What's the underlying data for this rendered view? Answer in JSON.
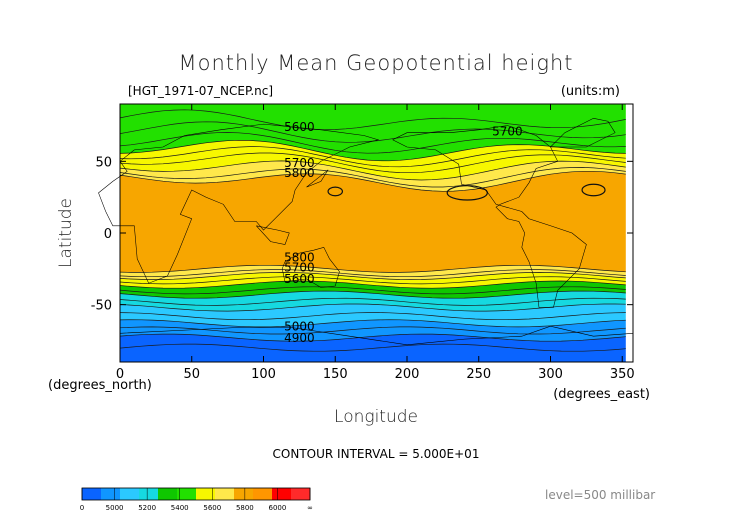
{
  "chart_data": {
    "type": "contour",
    "title": "Monthly Mean Geopotential height",
    "file_label": "[HGT_1971-07_NCEP.nc]",
    "units_label": "(units:m)",
    "xlabel": "Longitude",
    "ylabel": "Latitude",
    "x_unit_label": "(degrees_east)",
    "y_unit_label": "(degrees_north)",
    "xlim": [
      0,
      357.5
    ],
    "ylim": [
      -90,
      90
    ],
    "x_ticks": [
      0,
      50,
      100,
      150,
      200,
      250,
      300,
      350
    ],
    "y_ticks": [
      -50,
      0,
      50
    ],
    "contour_interval_text": "CONTOUR INTERVAL = 5.000E+01",
    "level_text": "level=500 millibar",
    "contour_labels": [
      {
        "text": "5600",
        "lon": 125,
        "lat": 71
      },
      {
        "text": "5700",
        "lon": 125,
        "lat": 46
      },
      {
        "text": "5800",
        "lon": 125,
        "lat": 39
      },
      {
        "text": "5700",
        "lon": 270,
        "lat": 68
      },
      {
        "text": "5800",
        "lon": 125,
        "lat": -20
      },
      {
        "text": "5700",
        "lon": 125,
        "lat": -27
      },
      {
        "text": "5600",
        "lon": 125,
        "lat": -35
      },
      {
        "text": "5000",
        "lon": 125,
        "lat": -68
      },
      {
        "text": "4900",
        "lon": 125,
        "lat": -76
      }
    ],
    "colorbar": {
      "labels": [
        "0",
        "5000",
        "5200",
        "5400",
        "5600",
        "5800",
        "6000",
        "∞"
      ],
      "colors": [
        "#0a64ff",
        "#1096ff",
        "#2bc9ff",
        "#16d9e0",
        "#0fc700",
        "#22e000",
        "#f7f700",
        "#ffe84b",
        "#f7a600",
        "#ff9600",
        "#ff0000",
        "#ff2a2a"
      ]
    },
    "bands": [
      {
        "color": "#0a64ff",
        "north": -73,
        "south": -90
      },
      {
        "color": "#1096ff",
        "north": -63,
        "south": -73
      },
      {
        "color": "#2bc9ff",
        "north": -52,
        "south": -63
      },
      {
        "color": "#16d9e0",
        "north": -43,
        "south": -52
      },
      {
        "color": "#0fc700",
        "north": -36,
        "south": -43
      },
      {
        "color": "#f7f700",
        "north": -30,
        "south": -36
      },
      {
        "color": "#ffe84b",
        "north": -25,
        "south": -30
      },
      {
        "color": "#f7a600",
        "north": 37,
        "south": -25
      },
      {
        "color": "#ffe84b",
        "north": 45,
        "south": 37
      },
      {
        "color": "#f7f700",
        "north": 58,
        "south": 45
      },
      {
        "color": "#22e000",
        "north": 90,
        "south": 58
      }
    ]
  }
}
